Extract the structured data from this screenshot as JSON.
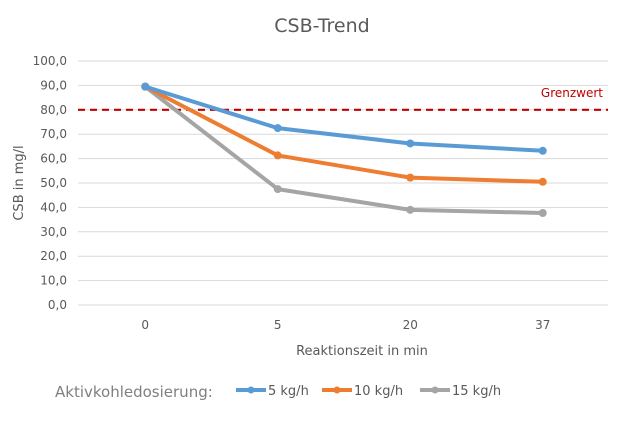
{
  "chart_data": {
    "type": "line",
    "title": "CSB-Trend",
    "xlabel": "Reaktionszeit in min",
    "ylabel": "CSB in mg/l",
    "categories": [
      "0",
      "5",
      "20",
      "37"
    ],
    "ylim": [
      0,
      100
    ],
    "yticks": [
      "0,0",
      "10,0",
      "20,0",
      "30,0",
      "40,0",
      "50,0",
      "60,0",
      "70,0",
      "80,0",
      "90,0",
      "100,0"
    ],
    "grid": true,
    "series": [
      {
        "name": "5 kg/h",
        "color": "#5b9bd5",
        "values": [
          89.5,
          72.5,
          66.2,
          63.2
        ]
      },
      {
        "name": "10 kg/h",
        "color": "#ed7d31",
        "values": [
          89.5,
          61.3,
          52.2,
          50.5
        ]
      },
      {
        "name": "15 kg/h",
        "color": "#a5a5a5",
        "values": [
          89.5,
          47.5,
          39.0,
          37.7
        ]
      }
    ],
    "reference_line": {
      "label": "Grenzwert",
      "value": 80,
      "color": "#c00000"
    },
    "legend": {
      "title": "Aktivkohledosierung:",
      "placement": "bottom"
    }
  }
}
